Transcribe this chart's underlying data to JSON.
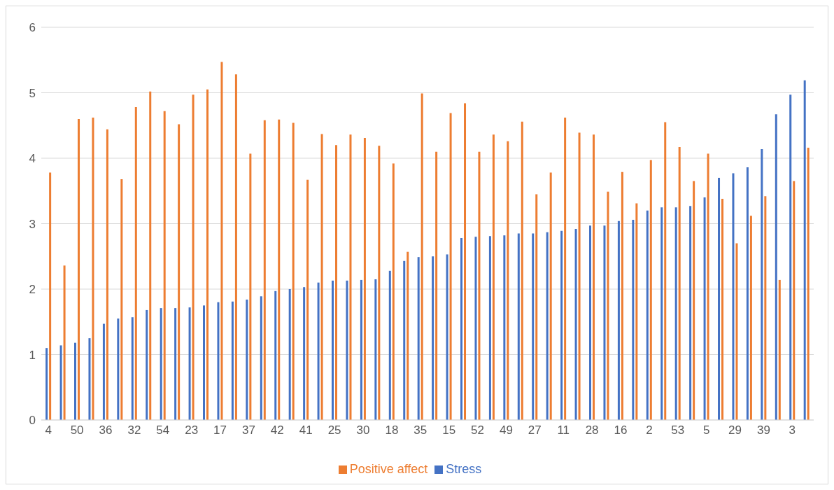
{
  "chart_data": {
    "type": "bar",
    "categories": [
      "4",
      null,
      "50",
      null,
      "36",
      null,
      "32",
      null,
      "54",
      null,
      "23",
      null,
      "17",
      null,
      "37",
      null,
      "42",
      null,
      "41",
      null,
      "25",
      null,
      "30",
      null,
      "18",
      null,
      "35",
      null,
      "15",
      null,
      "52",
      null,
      "49",
      null,
      "27",
      null,
      "11",
      null,
      "28",
      null,
      "16",
      null,
      "2",
      null,
      "53",
      null,
      "5",
      null,
      "29",
      null,
      "39",
      null,
      "3",
      null
    ],
    "series": [
      {
        "name": "Stress",
        "color": "#4472c4",
        "values": [
          1.1,
          1.14,
          1.18,
          1.25,
          1.47,
          1.55,
          1.57,
          1.68,
          1.71,
          1.71,
          1.72,
          1.75,
          1.8,
          1.81,
          1.84,
          1.89,
          1.97,
          2.0,
          2.03,
          2.1,
          2.13,
          2.13,
          2.14,
          2.15,
          2.28,
          2.43,
          2.49,
          2.5,
          2.53,
          2.78,
          2.8,
          2.81,
          2.82,
          2.85,
          2.85,
          2.87,
          2.89,
          2.92,
          2.97,
          2.97,
          3.04,
          3.06,
          3.2,
          3.25,
          3.25,
          3.27,
          3.4,
          3.7,
          3.77,
          3.86,
          4.14,
          4.67,
          4.97,
          5.19
        ]
      },
      {
        "name": "Positive affect",
        "color": "#ed7d31",
        "values": [
          3.78,
          2.36,
          4.6,
          4.62,
          4.44,
          3.68,
          4.78,
          5.02,
          4.72,
          4.52,
          4.97,
          5.05,
          5.47,
          5.28,
          4.07,
          4.58,
          4.59,
          4.54,
          3.67,
          4.37,
          4.2,
          4.36,
          4.31,
          4.19,
          3.92,
          2.57,
          4.99,
          4.1,
          4.69,
          4.84,
          4.1,
          4.36,
          4.26,
          4.56,
          3.45,
          3.78,
          4.62,
          4.39,
          4.36,
          3.49,
          3.79,
          3.31,
          3.97,
          4.55,
          4.17,
          3.65,
          4.07,
          3.38,
          2.7,
          3.12,
          3.42,
          2.14,
          3.65,
          4.16
        ]
      }
    ],
    "ylim": [
      0,
      6
    ],
    "yticks": [
      0,
      1,
      2,
      3,
      4,
      5,
      6
    ],
    "grid": "y",
    "legend": "bottom"
  }
}
